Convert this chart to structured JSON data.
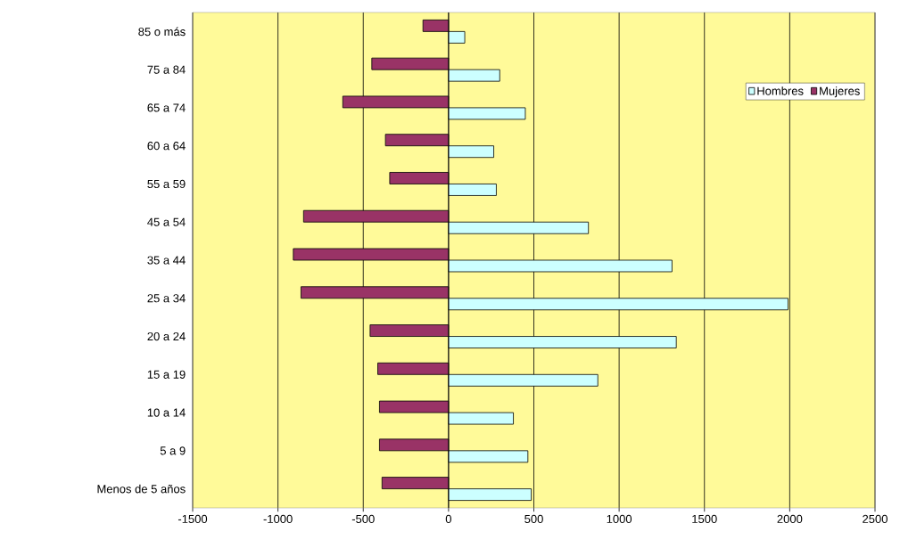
{
  "chart_data": {
    "type": "bar",
    "orientation": "horizontal",
    "categories": [
      "85 o más",
      "75 a 84",
      "65 a 74",
      "60 a 64",
      "55 a 59",
      "45 a 54",
      "35 a 44",
      "25 a 34",
      "20 a 24",
      "15 a 19",
      "10 a 14",
      "5 a 9",
      "Menos de 5 años"
    ],
    "series": [
      {
        "name": "Hombres",
        "color": "#ccffff",
        "values": [
          95,
          300,
          450,
          265,
          280,
          820,
          1310,
          1990,
          1335,
          875,
          380,
          465,
          485
        ]
      },
      {
        "name": "Mujeres",
        "color": "#993366",
        "values": [
          -150,
          -450,
          -620,
          -370,
          -345,
          -850,
          -910,
          -865,
          -460,
          -415,
          -405,
          -405,
          -390
        ]
      }
    ],
    "xlim": [
      -1500,
      2500
    ],
    "xticks": [
      -1500,
      -1000,
      -500,
      0,
      500,
      1000,
      1500,
      2000,
      2500
    ],
    "grid": "x",
    "legend": "top right"
  }
}
